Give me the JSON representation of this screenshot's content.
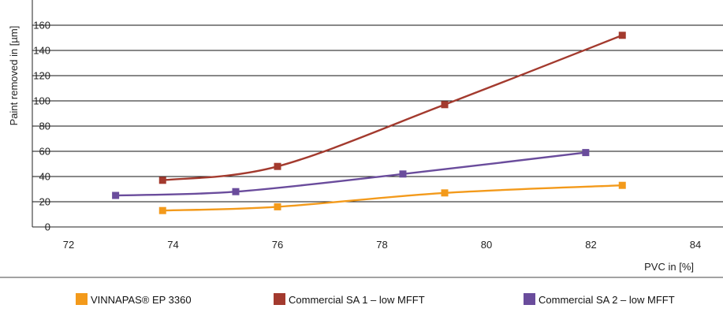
{
  "chart_data": {
    "type": "line",
    "xlabel": "PVC in [%]",
    "ylabel": "Paint removed in [µm]",
    "xlim": [
      72,
      84
    ],
    "ylim": [
      0,
      160
    ],
    "x_ticks": [
      72,
      74,
      76,
      78,
      80,
      82,
      84
    ],
    "y_ticks": [
      0,
      20,
      40,
      60,
      80,
      100,
      120,
      140,
      160
    ],
    "grid": "horizontal",
    "legend_placement": "bottom",
    "series": [
      {
        "name": "VINNAPAS® EP 3360",
        "color": "#f39a1b",
        "x": [
          73.8,
          76.0,
          79.2,
          82.6
        ],
        "y": [
          13,
          16,
          27,
          33
        ]
      },
      {
        "name": "Commercial SA 1 – low MFFT",
        "color": "#a33a2e",
        "x": [
          73.8,
          76.0,
          79.2,
          82.6
        ],
        "y": [
          37,
          48,
          97,
          152
        ]
      },
      {
        "name": "Commercial SA 2 – low MFFT",
        "color": "#6a4c9c",
        "x": [
          72.9,
          75.2,
          78.4,
          81.9
        ],
        "y": [
          25,
          28,
          42,
          59
        ]
      }
    ]
  }
}
